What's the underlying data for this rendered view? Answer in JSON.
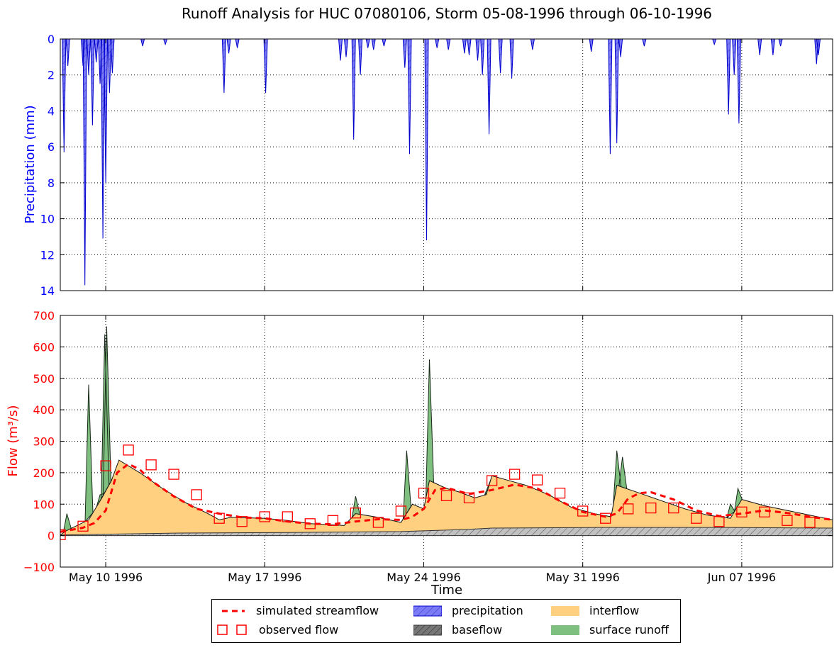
{
  "chart_data": {
    "type": "area",
    "title": "Runoff Analysis for HUC 07080106, Storm 05-08-1996 through 06-10-1996",
    "x_start": "1996-05-08",
    "x_end": "1996-06-11",
    "xlabel": "Time",
    "x_ticks": [
      {
        "date": "1996-05-10",
        "label": "May 10 1996"
      },
      {
        "date": "1996-05-17",
        "label": "May 17 1996"
      },
      {
        "date": "1996-05-24",
        "label": "May 24 1996"
      },
      {
        "date": "1996-05-31",
        "label": "May 31 1996"
      },
      {
        "date": "1996-06-07",
        "label": "Jun 07 1996"
      }
    ],
    "grid": true,
    "precipitation": {
      "ylabel": "Precipitation (mm)",
      "ylim": [
        0,
        14
      ],
      "y_inverted": true,
      "yticks": [
        0,
        2,
        4,
        6,
        8,
        10,
        12,
        14
      ],
      "color": "#0000ff",
      "peaks": [
        {
          "date": "1996-05-08 04:00",
          "value": 6.3
        },
        {
          "date": "1996-05-08 08:00",
          "value": 1.5
        },
        {
          "date": "1996-05-09 00:00",
          "value": 1.5
        },
        {
          "date": "1996-05-09 02:00",
          "value": 13.7
        },
        {
          "date": "1996-05-09 06:00",
          "value": 2.0
        },
        {
          "date": "1996-05-09 10:00",
          "value": 4.8
        },
        {
          "date": "1996-05-09 14:00",
          "value": 1.3
        },
        {
          "date": "1996-05-09 18:00",
          "value": 2.5
        },
        {
          "date": "1996-05-09 21:00",
          "value": 11.1
        },
        {
          "date": "1996-05-10 00:00",
          "value": 8.0
        },
        {
          "date": "1996-05-10 04:00",
          "value": 3.0
        },
        {
          "date": "1996-05-10 07:00",
          "value": 1.9
        },
        {
          "date": "1996-05-11 15:00",
          "value": 0.4
        },
        {
          "date": "1996-05-12 15:00",
          "value": 0.3
        },
        {
          "date": "1996-05-15 05:00",
          "value": 3.0
        },
        {
          "date": "1996-05-15 10:00",
          "value": 0.8
        },
        {
          "date": "1996-05-15 19:00",
          "value": 0.5
        },
        {
          "date": "1996-05-17 01:00",
          "value": 3.0
        },
        {
          "date": "1996-05-20 08:00",
          "value": 1.2
        },
        {
          "date": "1996-05-20 14:00",
          "value": 1.0
        },
        {
          "date": "1996-05-20 22:00",
          "value": 5.6
        },
        {
          "date": "1996-05-21 05:00",
          "value": 2.0
        },
        {
          "date": "1996-05-21 13:00",
          "value": 0.5
        },
        {
          "date": "1996-05-21 19:00",
          "value": 0.6
        },
        {
          "date": "1996-05-22 06:00",
          "value": 0.4
        },
        {
          "date": "1996-05-23 04:00",
          "value": 1.6
        },
        {
          "date": "1996-05-23 09:00",
          "value": 6.4
        },
        {
          "date": "1996-05-24 03:00",
          "value": 11.2
        },
        {
          "date": "1996-05-24 14:00",
          "value": 0.5
        },
        {
          "date": "1996-05-25 02:00",
          "value": 0.6
        },
        {
          "date": "1996-05-25 19:00",
          "value": 0.8
        },
        {
          "date": "1996-05-26 00:00",
          "value": 0.9
        },
        {
          "date": "1996-05-26 09:00",
          "value": 1.2
        },
        {
          "date": "1996-05-26 14:00",
          "value": 2.0
        },
        {
          "date": "1996-05-26 21:00",
          "value": 5.3
        },
        {
          "date": "1996-05-27 09:00",
          "value": 1.9
        },
        {
          "date": "1996-05-27 21:00",
          "value": 2.2
        },
        {
          "date": "1996-05-28 19:00",
          "value": 0.6
        },
        {
          "date": "1996-05-31 09:00",
          "value": 0.7
        },
        {
          "date": "1996-06-01 05:00",
          "value": 6.4
        },
        {
          "date": "1996-06-01 12:00",
          "value": 5.8
        },
        {
          "date": "1996-06-01 16:00",
          "value": 1.0
        },
        {
          "date": "1996-06-02 17:00",
          "value": 0.4
        },
        {
          "date": "1996-06-05 19:00",
          "value": 0.3
        },
        {
          "date": "1996-06-06 10:00",
          "value": 4.2
        },
        {
          "date": "1996-06-06 16:00",
          "value": 2.0
        },
        {
          "date": "1996-06-06 21:00",
          "value": 4.7
        },
        {
          "date": "1996-06-07 19:00",
          "value": 0.9
        },
        {
          "date": "1996-06-08 09:00",
          "value": 0.9
        },
        {
          "date": "1996-06-08 17:00",
          "value": 0.4
        },
        {
          "date": "1996-06-10 07:00",
          "value": 1.4
        },
        {
          "date": "1996-06-10 09:00",
          "value": 0.9
        }
      ]
    },
    "flow": {
      "ylabel": "Flow (m³/s)",
      "ylim": [
        -100,
        700
      ],
      "yticks": [
        -100,
        0,
        100,
        200,
        300,
        400,
        500,
        600,
        700
      ],
      "observed_flow": [
        {
          "date": "1996-05-08 00:00",
          "value": 3
        },
        {
          "date": "1996-05-09 00:00",
          "value": 30
        },
        {
          "date": "1996-05-10 00:00",
          "value": 222
        },
        {
          "date": "1996-05-11 00:00",
          "value": 272
        },
        {
          "date": "1996-05-12 00:00",
          "value": 225
        },
        {
          "date": "1996-05-13 00:00",
          "value": 195
        },
        {
          "date": "1996-05-14 00:00",
          "value": 130
        },
        {
          "date": "1996-05-15 00:00",
          "value": 55
        },
        {
          "date": "1996-05-16 00:00",
          "value": 45
        },
        {
          "date": "1996-05-17 00:00",
          "value": 60
        },
        {
          "date": "1996-05-18 00:00",
          "value": 60
        },
        {
          "date": "1996-05-19 00:00",
          "value": 38
        },
        {
          "date": "1996-05-20 00:00",
          "value": 48
        },
        {
          "date": "1996-05-21 00:00",
          "value": 72
        },
        {
          "date": "1996-05-22 00:00",
          "value": 42
        },
        {
          "date": "1996-05-23 00:00",
          "value": 78
        },
        {
          "date": "1996-05-24 00:00",
          "value": 135
        },
        {
          "date": "1996-05-25 00:00",
          "value": 127
        },
        {
          "date": "1996-05-26 00:00",
          "value": 120
        },
        {
          "date": "1996-05-27 00:00",
          "value": 175
        },
        {
          "date": "1996-05-28 00:00",
          "value": 195
        },
        {
          "date": "1996-05-29 00:00",
          "value": 177
        },
        {
          "date": "1996-05-30 00:00",
          "value": 135
        },
        {
          "date": "1996-05-31 00:00",
          "value": 78
        },
        {
          "date": "1996-06-01 00:00",
          "value": 55
        },
        {
          "date": "1996-06-02 00:00",
          "value": 85
        },
        {
          "date": "1996-06-03 00:00",
          "value": 88
        },
        {
          "date": "1996-06-04 00:00",
          "value": 88
        },
        {
          "date": "1996-06-05 00:00",
          "value": 55
        },
        {
          "date": "1996-06-06 00:00",
          "value": 45
        },
        {
          "date": "1996-06-07 00:00",
          "value": 75
        },
        {
          "date": "1996-06-08 00:00",
          "value": 75
        },
        {
          "date": "1996-06-09 00:00",
          "value": 48
        },
        {
          "date": "1996-06-10 00:00",
          "value": 42
        }
      ],
      "simulated_streamflow": [
        {
          "date": "1996-05-08 00:00",
          "value": 12
        },
        {
          "date": "1996-05-09 00:00",
          "value": 25
        },
        {
          "date": "1996-05-09 12:00",
          "value": 40
        },
        {
          "date": "1996-05-10 00:00",
          "value": 80
        },
        {
          "date": "1996-05-10 12:00",
          "value": 200
        },
        {
          "date": "1996-05-11 00:00",
          "value": 228
        },
        {
          "date": "1996-05-11 12:00",
          "value": 210
        },
        {
          "date": "1996-05-12 00:00",
          "value": 175
        },
        {
          "date": "1996-05-13 00:00",
          "value": 125
        },
        {
          "date": "1996-05-14 00:00",
          "value": 85
        },
        {
          "date": "1996-05-15 00:00",
          "value": 70
        },
        {
          "date": "1996-05-16 00:00",
          "value": 58
        },
        {
          "date": "1996-05-17 00:00",
          "value": 55
        },
        {
          "date": "1996-05-18 00:00",
          "value": 45
        },
        {
          "date": "1996-05-19 00:00",
          "value": 38
        },
        {
          "date": "1996-05-20 00:00",
          "value": 36
        },
        {
          "date": "1996-05-21 00:00",
          "value": 45
        },
        {
          "date": "1996-05-22 00:00",
          "value": 52
        },
        {
          "date": "1996-05-23 00:00",
          "value": 50
        },
        {
          "date": "1996-05-23 12:00",
          "value": 60
        },
        {
          "date": "1996-05-24 00:00",
          "value": 85
        },
        {
          "date": "1996-05-24 12:00",
          "value": 145
        },
        {
          "date": "1996-05-25 00:00",
          "value": 152
        },
        {
          "date": "1996-05-26 00:00",
          "value": 132
        },
        {
          "date": "1996-05-27 00:00",
          "value": 145
        },
        {
          "date": "1996-05-28 00:00",
          "value": 162
        },
        {
          "date": "1996-05-29 00:00",
          "value": 150
        },
        {
          "date": "1996-05-30 00:00",
          "value": 110
        },
        {
          "date": "1996-05-31 00:00",
          "value": 75
        },
        {
          "date": "1996-06-01 00:00",
          "value": 60
        },
        {
          "date": "1996-06-01 12:00",
          "value": 70
        },
        {
          "date": "1996-06-02 00:00",
          "value": 118
        },
        {
          "date": "1996-06-02 12:00",
          "value": 135
        },
        {
          "date": "1996-06-03 00:00",
          "value": 138
        },
        {
          "date": "1996-06-04 00:00",
          "value": 115
        },
        {
          "date": "1996-06-05 00:00",
          "value": 80
        },
        {
          "date": "1996-06-06 00:00",
          "value": 62
        },
        {
          "date": "1996-06-07 00:00",
          "value": 70
        },
        {
          "date": "1996-06-08 00:00",
          "value": 80
        },
        {
          "date": "1996-06-09 00:00",
          "value": 72
        },
        {
          "date": "1996-06-10 00:00",
          "value": 60
        },
        {
          "date": "1996-06-11 00:00",
          "value": 50
        }
      ],
      "baseflow": [
        {
          "date": "1996-05-08 00:00",
          "value": 2
        },
        {
          "date": "1996-05-13 00:00",
          "value": 8
        },
        {
          "date": "1996-05-18 00:00",
          "value": 10
        },
        {
          "date": "1996-05-23 00:00",
          "value": 13
        },
        {
          "date": "1996-05-26 00:00",
          "value": 20
        },
        {
          "date": "1996-05-27 00:00",
          "value": 24
        },
        {
          "date": "1996-06-01 00:00",
          "value": 26
        },
        {
          "date": "1996-06-06 00:00",
          "value": 26
        },
        {
          "date": "1996-06-11 00:00",
          "value": 24
        }
      ],
      "interflow_total": [
        {
          "date": "1996-05-08 00:00",
          "value": 2
        },
        {
          "date": "1996-05-08 06:00",
          "value": 15
        },
        {
          "date": "1996-05-09 06:00",
          "value": 50
        },
        {
          "date": "1996-05-09 20:00",
          "value": 120
        },
        {
          "date": "1996-05-10 06:00",
          "value": 175
        },
        {
          "date": "1996-05-10 14:00",
          "value": 240
        },
        {
          "date": "1996-05-11 12:00",
          "value": 200
        },
        {
          "date": "1996-05-12 12:00",
          "value": 150
        },
        {
          "date": "1996-05-13 12:00",
          "value": 105
        },
        {
          "date": "1996-05-14 12:00",
          "value": 70
        },
        {
          "date": "1996-05-15 00:00",
          "value": 50
        },
        {
          "date": "1996-05-15 12:00",
          "value": 58
        },
        {
          "date": "1996-05-17 00:00",
          "value": 55
        },
        {
          "date": "1996-05-18 00:00",
          "value": 48
        },
        {
          "date": "1996-05-19 00:00",
          "value": 38
        },
        {
          "date": "1996-05-20 12:00",
          "value": 32
        },
        {
          "date": "1996-05-21 00:00",
          "value": 70
        },
        {
          "date": "1996-05-22 00:00",
          "value": 58
        },
        {
          "date": "1996-05-23 00:00",
          "value": 42
        },
        {
          "date": "1996-05-23 12:00",
          "value": 100
        },
        {
          "date": "1996-05-24 00:00",
          "value": 85
        },
        {
          "date": "1996-05-24 06:00",
          "value": 175
        },
        {
          "date": "1996-05-25 00:00",
          "value": 150
        },
        {
          "date": "1996-05-25 12:00",
          "value": 140
        },
        {
          "date": "1996-05-26 06:00",
          "value": 120
        },
        {
          "date": "1996-05-26 18:00",
          "value": 130
        },
        {
          "date": "1996-05-27 00:00",
          "value": 190
        },
        {
          "date": "1996-05-28 00:00",
          "value": 170
        },
        {
          "date": "1996-05-28 12:00",
          "value": 160
        },
        {
          "date": "1996-05-29 12:00",
          "value": 130
        },
        {
          "date": "1996-05-30 12:00",
          "value": 90
        },
        {
          "date": "1996-05-31 12:00",
          "value": 70
        },
        {
          "date": "1996-06-01 06:00",
          "value": 60
        },
        {
          "date": "1996-06-01 12:00",
          "value": 160
        },
        {
          "date": "1996-06-02 12:00",
          "value": 135
        },
        {
          "date": "1996-06-03 12:00",
          "value": 110
        },
        {
          "date": "1996-06-04 12:00",
          "value": 85
        },
        {
          "date": "1996-06-05 12:00",
          "value": 65
        },
        {
          "date": "1996-06-06 12:00",
          "value": 55
        },
        {
          "date": "1996-06-07 00:00",
          "value": 115
        },
        {
          "date": "1996-06-08 00:00",
          "value": 95
        },
        {
          "date": "1996-06-09 00:00",
          "value": 80
        },
        {
          "date": "1996-06-10 00:00",
          "value": 65
        },
        {
          "date": "1996-06-11 00:00",
          "value": 50
        }
      ],
      "surface_runoff_peaks": [
        {
          "date": "1996-05-08 07:00",
          "value": 70
        },
        {
          "date": "1996-05-09 06:00",
          "value": 480
        },
        {
          "date": "1996-05-09 18:00",
          "value": 130
        },
        {
          "date": "1996-05-09 23:00",
          "value": 640
        },
        {
          "date": "1996-05-10 01:00",
          "value": 665
        },
        {
          "date": "1996-05-21 00:00",
          "value": 125
        },
        {
          "date": "1996-05-23 06:00",
          "value": 270
        },
        {
          "date": "1996-05-24 06:00",
          "value": 560
        },
        {
          "date": "1996-05-26 20:00",
          "value": 140
        },
        {
          "date": "1996-06-01 12:00",
          "value": 270
        },
        {
          "date": "1996-06-01 18:00",
          "value": 250
        },
        {
          "date": "1996-06-06 12:00",
          "value": 100
        },
        {
          "date": "1996-06-06 20:00",
          "value": 150
        }
      ]
    },
    "legend": {
      "placement": "bottom-center",
      "entries": [
        "simulated streamflow",
        "observed flow",
        "precipitation",
        "baseflow",
        "interflow",
        "surface runoff"
      ]
    },
    "colors": {
      "precipitation_fill": "#7b7bf7",
      "precipitation_edge": "#0000cc",
      "interflow": "#ffd080",
      "surface_runoff": "#7fbf7f",
      "baseflow": "#c0c0c0",
      "simulated_streamflow": "#ff0000",
      "observed_flow": "#ff0000",
      "precip_axis": "#0000ff",
      "flow_axis": "#ff0000"
    }
  }
}
